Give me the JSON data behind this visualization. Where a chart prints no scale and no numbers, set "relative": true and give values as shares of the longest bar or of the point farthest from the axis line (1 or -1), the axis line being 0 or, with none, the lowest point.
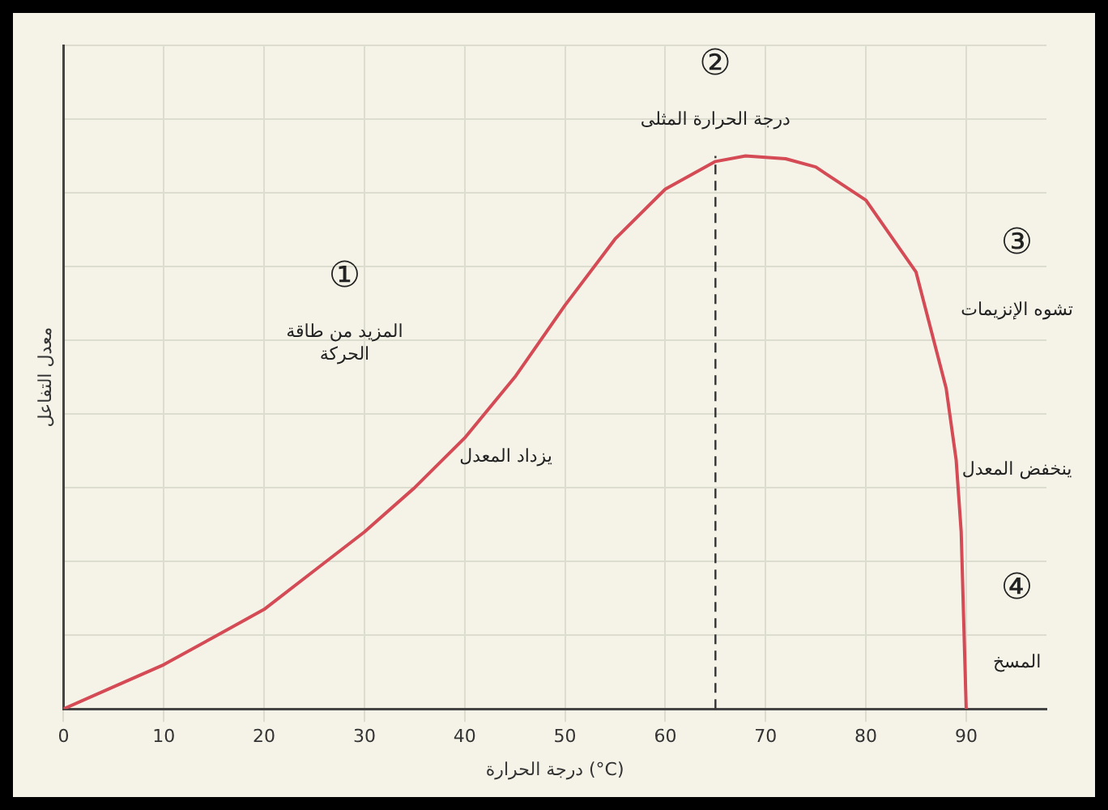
{
  "chart_data": {
    "type": "line",
    "xlabel": "درجة الحرارة (°C)",
    "ylabel": "معدل التفاعل",
    "relative": true,
    "x": [
      0,
      5,
      10,
      15,
      20,
      25,
      30,
      35,
      40,
      45,
      50,
      55,
      60,
      65,
      68,
      72,
      75,
      80,
      85,
      88,
      89,
      89.5,
      90
    ],
    "series": [
      {
        "color": "#d44a55",
        "values": [
          0,
          0.04,
          0.08,
          0.13,
          0.18,
          0.25,
          0.32,
          0.4,
          0.49,
          0.6,
          0.73,
          0.85,
          0.94,
          0.99,
          1,
          0.995,
          0.98,
          0.92,
          0.79,
          0.58,
          0.45,
          0.32,
          0
        ]
      }
    ],
    "xlim": [
      0,
      98
    ],
    "xticks": [
      0,
      10,
      20,
      30,
      40,
      50,
      60,
      70,
      80,
      90
    ],
    "ref_lines": [
      {
        "axis": "x",
        "value": 65,
        "label": "درجة الحرارة المثلى",
        "color": "#333333",
        "line_style": "dashed"
      }
    ],
    "annotations": [
      "①",
      "المزيد من طاقة الحركة",
      "يزداد المعدل",
      "②",
      "③",
      "تشوه الإنزيمات",
      "ينخفض المعدل",
      "④",
      "المسخ"
    ],
    "grid": true,
    "legend": false,
    "tick_labels": "x",
    "marker": "none",
    "line_style": "solid"
  }
}
